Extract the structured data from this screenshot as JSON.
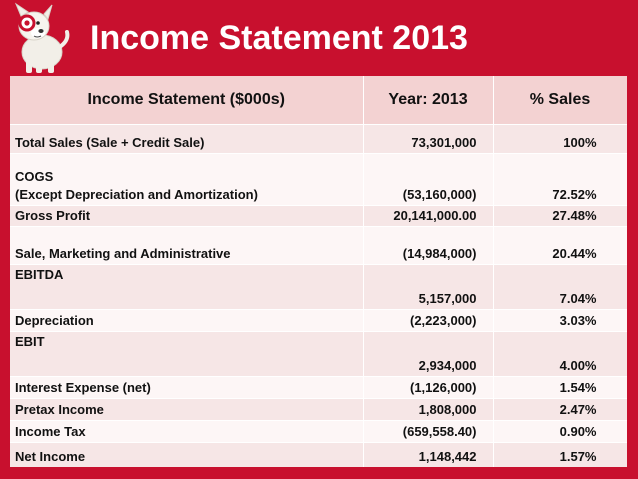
{
  "slide": {
    "title": "Income Statement 2013"
  },
  "table": {
    "headers": [
      "Income Statement ($000s)",
      "Year: 2013",
      "% Sales"
    ],
    "rows": [
      {
        "label": [
          "Total Sales (Sale + Credit Sale)"
        ],
        "year": "73,301,000",
        "pct": "100%"
      },
      {
        "label": [
          "COGS",
          "(Except Depreciation and Amortization)"
        ],
        "year": "(53,160,000)",
        "pct": "72.52%"
      },
      {
        "label": [
          "Gross Profit"
        ],
        "year": "20,141,000.00",
        "pct": "27.48%"
      },
      {
        "label": [
          "Sale, Marketing and Administrative"
        ],
        "year": "(14,984,000)",
        "pct": "20.44%"
      },
      {
        "label": [
          "EBITDA"
        ],
        "year": "5,157,000",
        "pct": "7.04%"
      },
      {
        "label": [
          "Depreciation"
        ],
        "year": "(2,223,000)",
        "pct": "3.03%"
      },
      {
        "label": [
          "EBIT"
        ],
        "year": "2,934,000",
        "pct": "4.00%"
      },
      {
        "label": [
          "Interest Expense (net)"
        ],
        "year": "(1,126,000)",
        "pct": "1.54%"
      },
      {
        "label": [
          "Pretax Income"
        ],
        "year": "1,808,000",
        "pct": "2.47%"
      },
      {
        "label": [
          "Income Tax"
        ],
        "year": "(659,558.40)",
        "pct": "0.90%"
      },
      {
        "label": [
          "Net Income"
        ],
        "year": "1,148,442",
        "pct": "1.57%"
      }
    ]
  },
  "colors": {
    "background": "#c8102e",
    "header_fill": "#f3d2d2",
    "row_odd": "#f6e6e6",
    "row_even": "#fdf6f6"
  },
  "icons": {
    "mascot": "bullseye-dog-mascot-icon"
  }
}
